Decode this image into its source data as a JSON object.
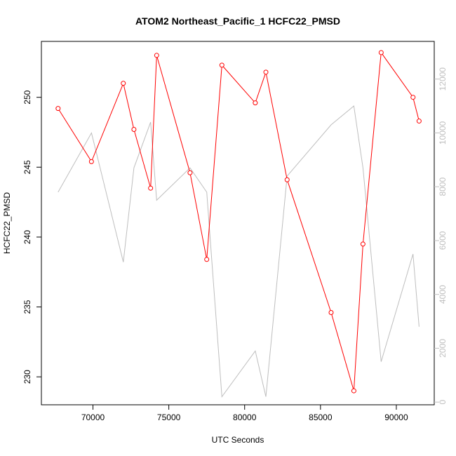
{
  "chart_data": {
    "type": "line",
    "title": "ATOM2 Northeast_Pacific_1 HCFC22_PMSD",
    "xlabel": "UTC Seconds",
    "ylabel": "HCFC22_PMSD",
    "xlim": [
      66600,
      92500
    ],
    "ylim": [
      228,
      254
    ],
    "y2lim": [
      -100,
      13400
    ],
    "x_ticks": [
      70000,
      75000,
      80000,
      85000,
      90000
    ],
    "y_ticks": [
      230,
      235,
      240,
      245,
      250
    ],
    "y2_ticks": [
      0,
      2000,
      4000,
      6000,
      8000,
      10000,
      12000
    ],
    "grid": false,
    "series": [
      {
        "color": "#ff0000",
        "axis": "left",
        "markers": true,
        "x": [
          67700,
          69900,
          72000,
          72700,
          73800,
          74200,
          76400,
          77500,
          78500,
          80700,
          81400,
          82800,
          85700,
          87200,
          87800,
          89000,
          91100,
          91500
        ],
        "y": [
          249.2,
          245.4,
          251.0,
          247.7,
          243.5,
          253.0,
          244.6,
          238.4,
          252.3,
          249.6,
          251.8,
          244.1,
          234.6,
          229.0,
          239.5,
          253.2,
          250.0,
          248.3
        ]
      },
      {
        "color": "#bebebe",
        "axis": "right",
        "markers": false,
        "x": [
          67700,
          69900,
          72000,
          72700,
          73800,
          74200,
          76400,
          77500,
          78500,
          80700,
          81400,
          82800,
          85700,
          87200,
          87800,
          89000,
          91100,
          91500
        ],
        "y": [
          7800,
          10000,
          5200,
          8700,
          10400,
          7500,
          8700,
          7800,
          200,
          1900,
          200,
          8400,
          10300,
          11000,
          8700,
          1500,
          5500,
          2800
        ]
      }
    ]
  }
}
